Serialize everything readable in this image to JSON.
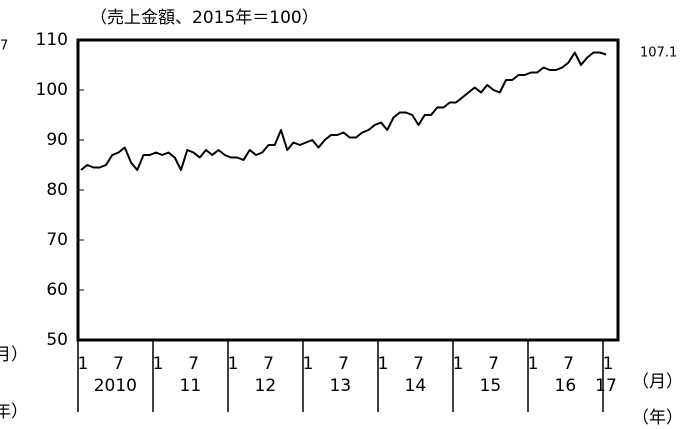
{
  "chart_data": {
    "type": "line",
    "title": "（売上金額、2015年＝100）",
    "left_fragments": [
      "7",
      "月）",
      "年）"
    ],
    "x_unit_month": "（月）",
    "x_unit_year": "（年）",
    "categories": [
      "1",
      null,
      null,
      null,
      null,
      null,
      "7",
      null,
      null,
      null,
      null,
      null,
      "1",
      null,
      null,
      null,
      null,
      null,
      "7",
      null,
      null,
      null,
      null,
      null,
      "1",
      null,
      null,
      null,
      null,
      null,
      "7",
      null,
      null,
      null,
      null,
      null,
      "1",
      null,
      null,
      null,
      null,
      null,
      "7",
      null,
      null,
      null,
      null,
      null,
      "1",
      null,
      null,
      null,
      null,
      null,
      "7",
      null,
      null,
      null,
      null,
      null,
      "1",
      null,
      null,
      null,
      null,
      null,
      "7",
      null,
      null,
      null,
      null,
      null,
      "1",
      null,
      null,
      null,
      null,
      null,
      "7",
      null,
      null,
      null,
      null,
      null,
      "1"
    ],
    "year_labels": [
      "2010",
      "11",
      "12",
      "13",
      "14",
      "15",
      "16",
      "17"
    ],
    "values": [
      84,
      85,
      84.5,
      84.5,
      85,
      87,
      87.5,
      88.5,
      85.5,
      84,
      87,
      87,
      87.5,
      87,
      87.5,
      86.5,
      84,
      88,
      87.5,
      86.5,
      88,
      87,
      88,
      87,
      86.5,
      86.5,
      86,
      88,
      87,
      87.5,
      89,
      89,
      92,
      88,
      89.5,
      89,
      89.5,
      90,
      88.5,
      90,
      91,
      91,
      91.5,
      90.5,
      90.5,
      91.5,
      92,
      93,
      93.5,
      92,
      94.5,
      95.5,
      95.5,
      95,
      93,
      95,
      95,
      96.5,
      96.5,
      97.5,
      97.5,
      98.5,
      99.5,
      100.5,
      99.5,
      101,
      100,
      99.5,
      102,
      102,
      103,
      103,
      103.5,
      103.5,
      104.5,
      104,
      104,
      104.5,
      105.5,
      107.5,
      105,
      106.5,
      107.5,
      107.5,
      107.1
    ],
    "color": "#000000",
    "ylim": [
      50,
      110
    ],
    "yticks": [
      50,
      60,
      70,
      80,
      90,
      100,
      110
    ],
    "grid": false
  }
}
